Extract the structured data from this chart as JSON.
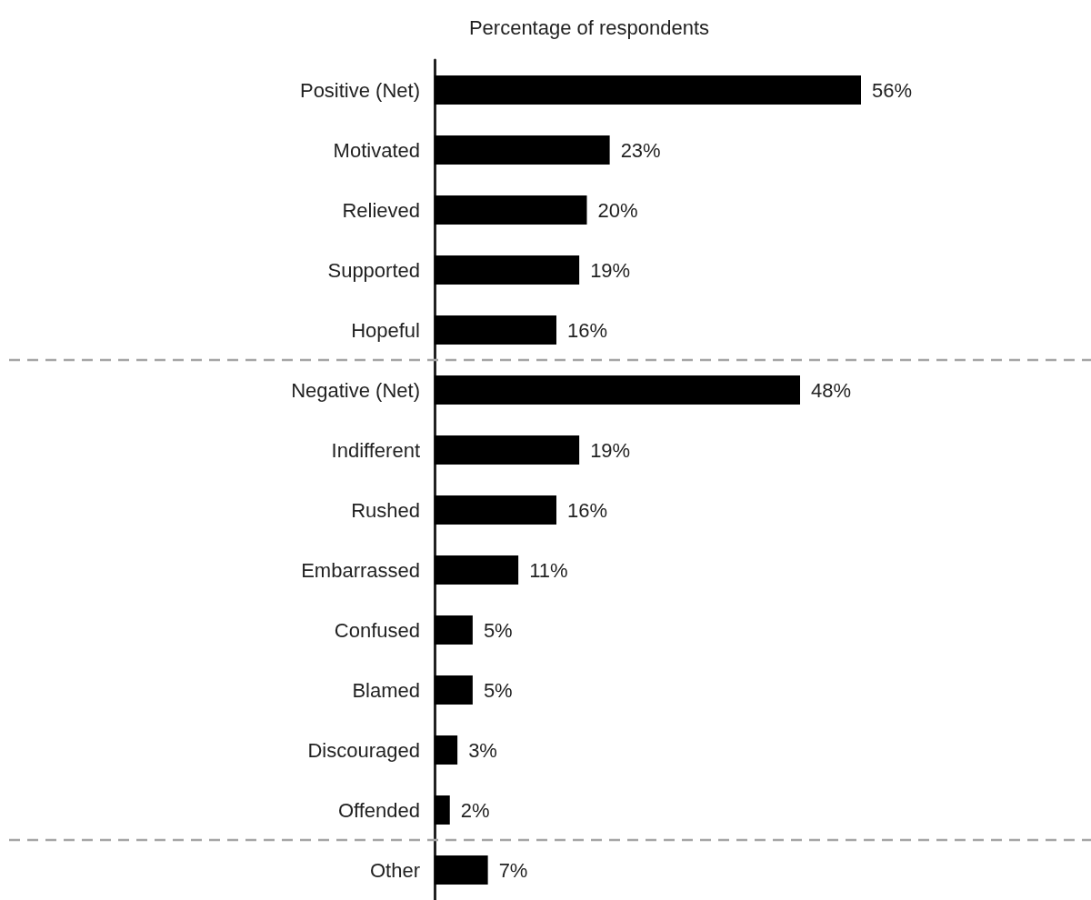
{
  "chart_data": {
    "type": "bar",
    "orientation": "horizontal",
    "title": "Percentage of respondents",
    "categories": [
      "Positive (Net)",
      "Motivated",
      "Relieved",
      "Supported",
      "Hopeful",
      "Negative (Net)",
      "Indifferent",
      "Rushed",
      "Embarrassed",
      "Confused",
      "Blamed",
      "Discouraged",
      "Offended",
      "Other"
    ],
    "values": [
      56,
      23,
      20,
      19,
      16,
      48,
      19,
      16,
      11,
      5,
      5,
      3,
      2,
      7
    ],
    "value_labels": [
      "56%",
      "23%",
      "20%",
      "19%",
      "16%",
      "48%",
      "19%",
      "16%",
      "11%",
      "5%",
      "5%",
      "3%",
      "2%",
      "7%"
    ],
    "color": "#000000",
    "ref_lines": [
      {
        "axis": "y",
        "value": "Hopeful",
        "label": null,
        "color": "#a6a6a6",
        "line_style": "dashed"
      },
      {
        "axis": "y",
        "value": "Offended",
        "label": null,
        "color": "#a6a6a6",
        "line_style": "dashed"
      }
    ]
  }
}
